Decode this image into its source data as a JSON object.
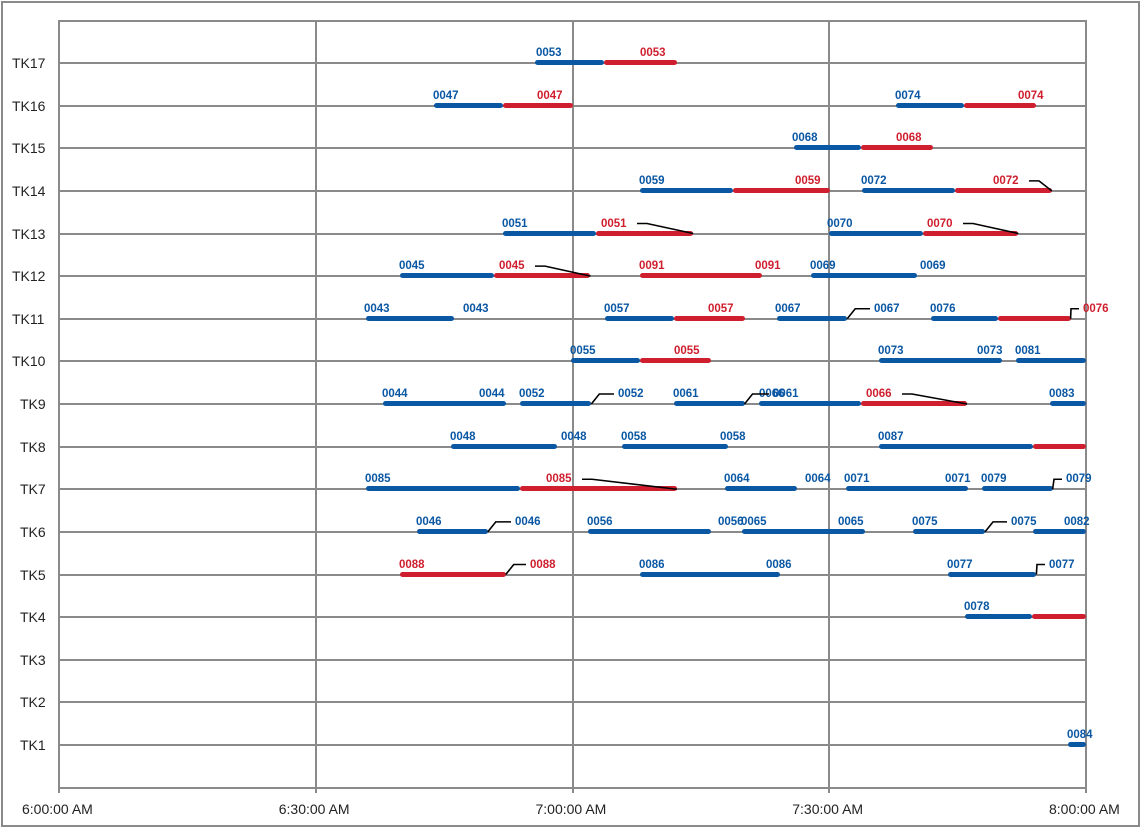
{
  "chart_data": {
    "type": "gantt",
    "title": "",
    "xlabel": "",
    "ylabel": "",
    "x_ticks": [
      "6:00:00 AM",
      "6:30:00 AM",
      "7:00:00 AM",
      "7:30:00 AM",
      "8:00:00 AM"
    ],
    "x_range_minutes": [
      0,
      120
    ],
    "x_origin": "6:00:00 AM",
    "y_categories": [
      "TK17",
      "TK16",
      "TK15",
      "TK14",
      "TK13",
      "TK12",
      "TK11",
      "TK10",
      "TK9",
      "TK8",
      "TK7",
      "TK6",
      "TK5",
      "TK4",
      "TK3",
      "TK2",
      "TK1"
    ],
    "grid": true,
    "colors": {
      "blue": "#0a57a4",
      "red": "#cf1f2e",
      "grid": "#8a8a8a",
      "leader": "#000000"
    },
    "note": "Bar times are minutes after 6:00:00 AM; each bar has a blue segment (start→split) and a red segment (split→end); null split means all one color.",
    "bars": [
      {
        "row": "TK17",
        "id": "0053",
        "start": 55.6,
        "split": 63.7,
        "end": 72.2,
        "start_label_color": "blue",
        "end_label_color": "red",
        "start_label_x": 536,
        "end_label_x": 640,
        "leader": false
      },
      {
        "row": "TK16",
        "id": "0047",
        "start": 43.8,
        "split": 51.9,
        "end": 60.1,
        "start_label_color": "blue",
        "end_label_color": "red",
        "start_label_x": 433,
        "end_label_x": 537,
        "leader": false
      },
      {
        "row": "TK16",
        "id": "0074",
        "start": 97.8,
        "split": 105.8,
        "end": 114.2,
        "start_label_color": "blue",
        "end_label_color": "red",
        "start_label_x": 895,
        "end_label_x": 1018,
        "leader": false
      },
      {
        "row": "TK15",
        "id": "0068",
        "start": 85.9,
        "split": 93.7,
        "end": 102.1,
        "start_label_color": "blue",
        "end_label_color": "red",
        "start_label_x": 792,
        "end_label_x": 896,
        "leader": false
      },
      {
        "row": "TK14",
        "id": "0059",
        "start": 67.9,
        "split": 78.8,
        "end": 90.1,
        "start_label_color": "blue",
        "end_label_color": "red",
        "start_label_x": 639,
        "end_label_x": 795,
        "leader": false
      },
      {
        "row": "TK14",
        "id": "0072",
        "start": 93.8,
        "split": 104.7,
        "end": 116.0,
        "start_label_color": "blue",
        "end_label_color": "red",
        "start_label_x": 861,
        "end_label_x": 993,
        "leader": true
      },
      {
        "row": "TK13",
        "id": "0051",
        "start": 51.9,
        "split": 62.8,
        "end": 74.1,
        "start_label_color": "blue",
        "end_label_color": "red",
        "start_label_x": 502,
        "end_label_x": 601,
        "leader": true
      },
      {
        "row": "TK13",
        "id": "0070",
        "start": 90.0,
        "split": 100.9,
        "end": 112.1,
        "start_label_color": "blue",
        "end_label_color": "red",
        "start_label_x": 827,
        "end_label_x": 927,
        "leader": true
      },
      {
        "row": "TK12",
        "id": "0045",
        "start": 39.9,
        "split": 50.8,
        "end": 62.1,
        "start_label_color": "blue",
        "end_label_color": "red",
        "start_label_x": 399,
        "end_label_x": 499,
        "leader": true
      },
      {
        "row": "TK12",
        "id": "0091",
        "start": 67.9,
        "split": null,
        "end": 82.2,
        "color": "red",
        "start_label_color": "red",
        "end_label_color": "red",
        "start_label_x": 639,
        "end_label_x": 755,
        "leader": false
      },
      {
        "row": "TK12",
        "id": "0069",
        "start": 87.9,
        "split": null,
        "end": 100.2,
        "color": "blue",
        "start_label_color": "blue",
        "end_label_color": "blue",
        "start_label_x": 810,
        "end_label_x": 920,
        "leader": false
      },
      {
        "row": "TK11",
        "id": "0043",
        "start": 35.9,
        "split": null,
        "end": 46.2,
        "color": "blue",
        "start_label_color": "blue",
        "end_label_color": "blue",
        "start_label_x": 364,
        "end_label_x": 463,
        "leader": false
      },
      {
        "row": "TK11",
        "id": "0057",
        "start": 63.8,
        "split": 71.9,
        "end": 80.2,
        "start_label_color": "blue",
        "end_label_color": "red",
        "start_label_x": 604,
        "end_label_x": 708,
        "leader": false
      },
      {
        "row": "TK11",
        "id": "0067",
        "start": 83.9,
        "split": null,
        "end": 92.1,
        "color": "blue",
        "start_label_color": "blue",
        "end_label_color": "blue",
        "start_label_x": 775,
        "end_label_x": 874,
        "leader": true
      },
      {
        "row": "TK11",
        "id": "0076",
        "start": 101.9,
        "split": 109.7,
        "end": 118.2,
        "start_label_color": "blue",
        "end_label_color": "red",
        "start_label_x": 930,
        "end_label_x": 1083,
        "leader": true
      },
      {
        "row": "TK10",
        "id": "0055",
        "start": 59.8,
        "split": 67.9,
        "end": 76.2,
        "start_label_color": "blue",
        "end_label_color": "red",
        "start_label_x": 570,
        "end_label_x": 674,
        "leader": false
      },
      {
        "row": "TK10",
        "id": "0073",
        "start": 95.8,
        "split": null,
        "end": 110.2,
        "color": "blue",
        "start_label_color": "blue",
        "end_label_color": "blue",
        "start_label_x": 878,
        "end_label_x": 977,
        "leader": false
      },
      {
        "row": "TK10",
        "id": "0081",
        "start": 111.8,
        "split": null,
        "end": 120.0,
        "color": "blue",
        "start_label_color": "blue",
        "end_label_color": null,
        "start_label_x": 1015,
        "end_label_x": null,
        "leader": false
      },
      {
        "row": "TK9",
        "id": "0044",
        "start": 37.9,
        "split": null,
        "end": 52.2,
        "color": "blue",
        "start_label_color": "blue",
        "end_label_color": "blue",
        "start_label_x": 382,
        "end_label_x": 479,
        "leader": false
      },
      {
        "row": "TK9",
        "id": "0052",
        "start": 53.9,
        "split": null,
        "end": 62.2,
        "color": "blue",
        "start_label_color": "blue",
        "end_label_color": "blue",
        "start_label_x": 519,
        "end_label_x": 618,
        "leader": true
      },
      {
        "row": "TK9",
        "id": "0061",
        "start": 71.9,
        "split": null,
        "end": 80.1,
        "color": "blue",
        "start_label_color": "blue",
        "end_label_color": "blue",
        "start_label_x": 673,
        "end_label_x": 773,
        "leader": true
      },
      {
        "row": "TK9",
        "id": "0066",
        "start": 81.8,
        "split": 93.7,
        "end": 106.1,
        "start_label_color": "blue",
        "end_label_color": "red",
        "start_label_x": 759,
        "end_label_x": 866,
        "leader": true
      },
      {
        "row": "TK9",
        "id": "0083",
        "start": 115.8,
        "split": null,
        "end": 120.0,
        "color": "blue",
        "start_label_color": "blue",
        "end_label_color": null,
        "start_label_x": 1049,
        "end_label_x": null,
        "leader": false
      },
      {
        "row": "TK8",
        "id": "0048",
        "start": 45.8,
        "split": null,
        "end": 58.2,
        "color": "blue",
        "start_label_color": "blue",
        "end_label_color": "blue",
        "start_label_x": 450,
        "end_label_x": 561,
        "leader": false
      },
      {
        "row": "TK8",
        "id": "0058",
        "start": 65.8,
        "split": null,
        "end": 78.2,
        "color": "blue",
        "start_label_color": "blue",
        "end_label_color": "blue",
        "start_label_x": 621,
        "end_label_x": 720,
        "leader": false
      },
      {
        "row": "TK8",
        "id": "0087",
        "start": 95.8,
        "split": 113.8,
        "end": 120.0,
        "start_label_color": "blue",
        "end_label_color": null,
        "start_label_x": 878,
        "end_label_x": null,
        "leader": false
      },
      {
        "row": "TK7",
        "id": "0085",
        "start": 35.9,
        "split": 53.9,
        "end": 72.2,
        "start_label_color": "blue",
        "end_label_color": "red",
        "start_label_x": 365,
        "end_label_x": 546,
        "leader": true
      },
      {
        "row": "TK7",
        "id": "0064",
        "start": 77.8,
        "split": null,
        "end": 86.2,
        "color": "blue",
        "start_label_color": "blue",
        "end_label_color": "blue",
        "start_label_x": 724,
        "end_label_x": 805,
        "leader": false
      },
      {
        "row": "TK7",
        "id": "0071",
        "start": 91.9,
        "split": null,
        "end": 106.2,
        "color": "blue",
        "start_label_color": "blue",
        "end_label_color": "blue",
        "start_label_x": 844,
        "end_label_x": 945,
        "leader": false
      },
      {
        "row": "TK7",
        "id": "0079",
        "start": 107.9,
        "split": null,
        "end": 116.1,
        "color": "blue",
        "start_label_color": "blue",
        "end_label_color": "blue",
        "start_label_x": 981,
        "end_label_x": 1066,
        "leader": true
      },
      {
        "row": "TK6",
        "id": "0046",
        "start": 41.8,
        "split": null,
        "end": 50.1,
        "color": "blue",
        "start_label_color": "blue",
        "end_label_color": "blue",
        "start_label_x": 416,
        "end_label_x": 515,
        "leader": true
      },
      {
        "row": "TK6",
        "id": "0056",
        "start": 61.8,
        "split": null,
        "end": 76.2,
        "color": "blue",
        "start_label_color": "blue",
        "end_label_color": "blue",
        "start_label_x": 587,
        "end_label_x": 718,
        "leader": false
      },
      {
        "row": "TK6",
        "id": "0065",
        "start": 79.8,
        "split": null,
        "end": 94.2,
        "color": "blue",
        "start_label_color": "blue",
        "end_label_color": "blue",
        "start_label_x": 741,
        "end_label_x": 838,
        "leader": false
      },
      {
        "row": "TK6",
        "id": "0075",
        "start": 99.8,
        "split": null,
        "end": 108.2,
        "color": "blue",
        "start_label_color": "blue",
        "end_label_color": "blue",
        "start_label_x": 912,
        "end_label_x": 1011,
        "leader": true
      },
      {
        "row": "TK6",
        "id": "0082",
        "start": 113.8,
        "split": null,
        "end": 120.0,
        "color": "blue",
        "start_label_color": "blue",
        "end_label_color": null,
        "start_label_x": 1064,
        "end_label_x": null,
        "leader": true
      },
      {
        "row": "TK5",
        "id": "0088",
        "start": 39.9,
        "split": null,
        "end": 52.2,
        "color": "red",
        "start_label_color": "red",
        "end_label_color": "red",
        "start_label_x": 399,
        "end_label_x": 530,
        "leader": true
      },
      {
        "row": "TK5",
        "id": "0086",
        "start": 67.9,
        "split": null,
        "end": 84.3,
        "color": "blue",
        "start_label_color": "blue",
        "end_label_color": "blue",
        "start_label_x": 639,
        "end_label_x": 766,
        "leader": false
      },
      {
        "row": "TK5",
        "id": "0077",
        "start": 103.9,
        "split": null,
        "end": 114.2,
        "color": "blue",
        "start_label_color": "blue",
        "end_label_color": "blue",
        "start_label_x": 947,
        "end_label_x": 1049,
        "leader": true
      },
      {
        "row": "TK4",
        "id": "0078",
        "start": 105.9,
        "split": 113.7,
        "end": 120.0,
        "start_label_color": "blue",
        "end_label_color": null,
        "start_label_x": 964,
        "end_label_x": null,
        "leader": false
      },
      {
        "row": "TK1",
        "id": "0084",
        "start": 117.9,
        "split": null,
        "end": 120.0,
        "color": "blue",
        "start_label_color": "blue",
        "end_label_color": null,
        "start_label_x": 1067,
        "end_label_x": null,
        "leader": false
      }
    ]
  }
}
